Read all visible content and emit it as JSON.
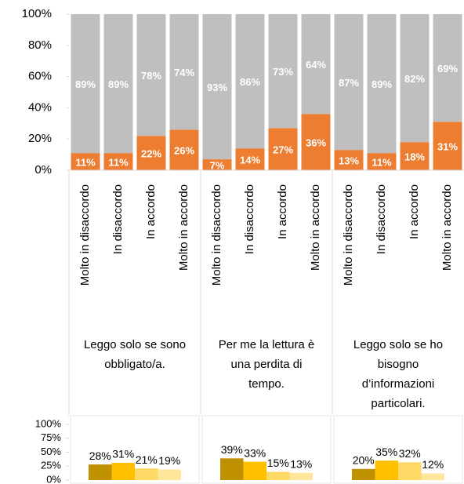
{
  "chart_data": [
    {
      "type": "stacked_bar",
      "categories": [
        "Molto in disaccordo",
        "In disaccordo",
        "In accordo",
        "Molto in accordo",
        "Molto in disaccordo",
        "In disaccordo",
        "In accordo",
        "Molto in accordo",
        "Molto in disaccordo",
        "In disaccordo",
        "In accordo",
        "Molto in accordo"
      ],
      "group_labels": [
        [
          "Leggo solo se sono",
          "obbligato/a."
        ],
        [
          "Per me la lettura è",
          "una perdita di",
          "tempo."
        ],
        [
          "Leggo solo se ho",
          "bisogno",
          "d’informazioni",
          "particolari."
        ]
      ],
      "series": [
        {
          "color": "#ed7d31",
          "values": [
            11,
            11,
            22,
            26,
            7,
            14,
            27,
            36,
            13,
            11,
            18,
            31
          ],
          "value_labels": [
            "11%",
            "11%",
            "22%",
            "26%",
            "7%",
            "14%",
            "27%",
            "36%",
            "13%",
            "11%",
            "18%",
            "31%"
          ]
        },
        {
          "color": "#bfbfbf",
          "values": [
            89,
            89,
            78,
            74,
            93,
            86,
            73,
            64,
            87,
            89,
            82,
            69
          ],
          "value_labels": [
            "89%",
            "89%",
            "78%",
            "74%",
            "93%",
            "86%",
            "73%",
            "64%",
            "87%",
            "89%",
            "82%",
            "69%"
          ]
        }
      ],
      "ylim": [
        0,
        100
      ],
      "yticks": [
        {
          "value": 0,
          "label": "0%"
        },
        {
          "value": 20,
          "label": "20%"
        },
        {
          "value": 40,
          "label": "40%"
        },
        {
          "value": 60,
          "label": "60%"
        },
        {
          "value": 80,
          "label": "80%"
        },
        {
          "value": 100,
          "label": "100%"
        }
      ]
    },
    {
      "type": "grouped_bar",
      "series": [
        {
          "color": "#bf9000",
          "values": [
            28,
            39,
            20
          ],
          "value_labels": [
            "28%",
            "39%",
            "20%"
          ]
        },
        {
          "color": "#ffc000",
          "values": [
            31,
            33,
            35
          ],
          "value_labels": [
            "31%",
            "33%",
            "35%"
          ]
        },
        {
          "color": "#ffd966",
          "values": [
            21,
            15,
            32
          ],
          "value_labels": [
            "21%",
            "15%",
            "32%"
          ]
        },
        {
          "color": "#ffe699",
          "values": [
            19,
            13,
            12
          ],
          "value_labels": [
            "19%",
            "13%",
            "12%"
          ]
        }
      ],
      "ylim": [
        0,
        100
      ],
      "yticks": [
        {
          "value": 0,
          "label": "0%"
        },
        {
          "value": 25,
          "label": "25%"
        },
        {
          "value": 50,
          "label": "50%"
        },
        {
          "value": 75,
          "label": "75%"
        },
        {
          "value": 100,
          "label": "100%"
        }
      ]
    }
  ]
}
